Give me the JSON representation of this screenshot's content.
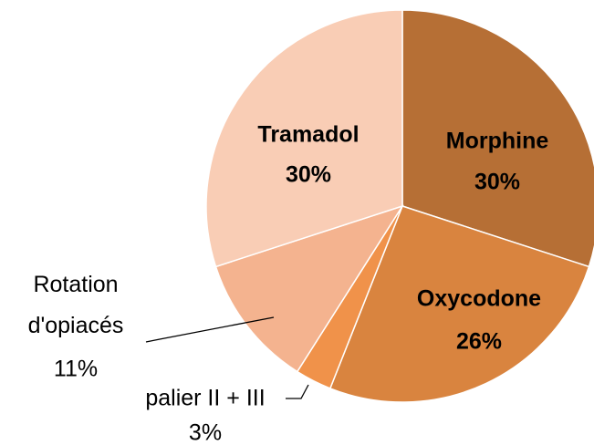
{
  "chart_data": {
    "type": "pie",
    "categories": [
      "Morphine",
      "Oxycodone",
      "palier II + III",
      "Rotation d'opiacés",
      "Tramadol"
    ],
    "values": [
      30,
      26,
      3,
      11,
      30
    ],
    "value_labels": [
      "30%",
      "26%",
      "3%",
      "11%",
      "30%"
    ],
    "colors": [
      "#b66f35",
      "#d9843f",
      "#f0924a",
      "#f4b38f",
      "#f9cdb5"
    ]
  }
}
